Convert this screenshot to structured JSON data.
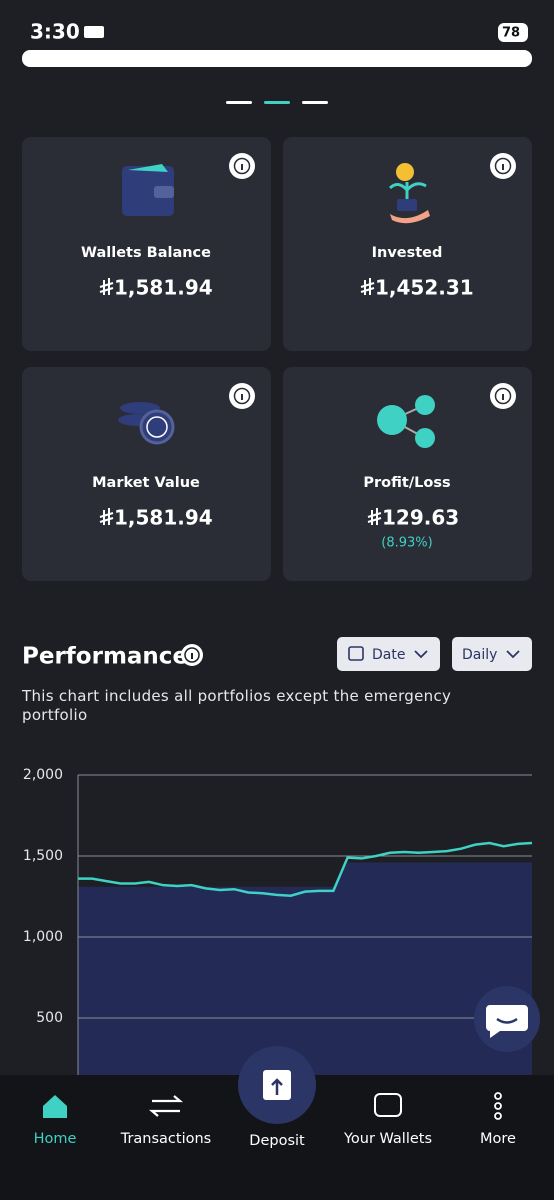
{
  "status_bar": {
    "time": "3:30",
    "battery": "78"
  },
  "cards": [
    {
      "label": "Wallets Balance",
      "value": "1,581.94"
    },
    {
      "label": "Invested",
      "value": "1,452.31"
    },
    {
      "label": "Market Value",
      "value": "1,581.94"
    },
    {
      "label": "Profit/Loss",
      "value": "129.63",
      "change": "(8.93%)"
    }
  ],
  "performance": {
    "title": "Performance",
    "date_filter": "Date",
    "period_filter": "Daily",
    "description": "This chart includes all portfolios except the emergency portfolio"
  },
  "chart_data": {
    "type": "line",
    "ylim": [
      0,
      2000
    ],
    "yticks": [
      {
        "value": 500,
        "label": "500"
      },
      {
        "value": 1000,
        "label": "1,000"
      },
      {
        "value": 1500,
        "label": "1,500"
      },
      {
        "value": 2000,
        "label": "2,000"
      }
    ],
    "grid": true,
    "series": [
      {
        "color": "#3ed1c4",
        "values": [
          1360,
          1360,
          1345,
          1330,
          1330,
          1340,
          1320,
          1315,
          1320,
          1300,
          1290,
          1295,
          1275,
          1270,
          1260,
          1255,
          1280,
          1285,
          1285,
          1490,
          1485,
          1500,
          1520,
          1525,
          1520,
          1525,
          1530,
          1545,
          1570,
          1580,
          1560,
          1575,
          1580
        ]
      },
      {
        "color": "#222a55",
        "area": true,
        "values": [
          1310,
          1310,
          1310,
          1310,
          1310,
          1310,
          1310,
          1310,
          1310,
          1310,
          1310,
          1310,
          1310,
          1310,
          1310,
          1310,
          1310,
          1310,
          1310,
          1460,
          1460,
          1460,
          1460,
          1460,
          1460,
          1460,
          1460,
          1460,
          1460,
          1460,
          1460,
          1460,
          1460
        ]
      }
    ]
  },
  "nav": [
    {
      "label": "Home",
      "active": true
    },
    {
      "label": "Transactions"
    },
    {
      "label": "Deposit"
    },
    {
      "label": "Your Wallets"
    },
    {
      "label": "More"
    }
  ]
}
